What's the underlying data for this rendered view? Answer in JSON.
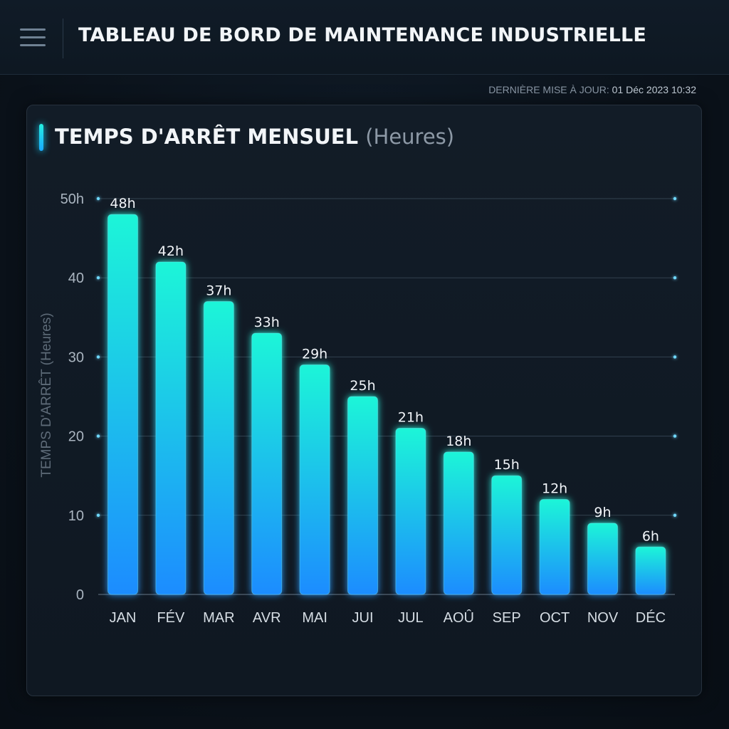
{
  "header": {
    "title": "TABLEAU DE BORD DE MAINTENANCE INDUSTRIELLE",
    "last_update_label": "DERNIÈRE MISE À JOUR:",
    "last_update_value": "01 Déc 2023 10:32"
  },
  "panel": {
    "title": "TEMPS D'ARRÊT MENSUEL",
    "title_unit": "(Heures)"
  },
  "icons": {
    "menu": "hamburger-menu-icon"
  },
  "colors": {
    "bar_top": "#1ff5d8",
    "bar_bottom": "#1a8cff",
    "accent": "#19d6ff",
    "grid": "#33424f"
  },
  "chart_data": {
    "type": "bar",
    "categories": [
      "JAN",
      "FÉV",
      "MAR",
      "AVR",
      "MAI",
      "JUI",
      "JUL",
      "AOÛ",
      "SEP",
      "OCT",
      "NOV",
      "DÉC"
    ],
    "values": [
      48,
      42,
      37,
      33,
      29,
      25,
      21,
      18,
      15,
      12,
      9,
      6
    ],
    "data_labels": [
      "48h",
      "42h",
      "37h",
      "33h",
      "29h",
      "25h",
      "21h",
      "18h",
      "15h",
      "12h",
      "9h",
      "6h"
    ],
    "ylabel": "TEMPS D'ARRÊT (Heures)",
    "ylim": [
      0,
      50
    ],
    "yticks": [
      0,
      10,
      20,
      30,
      40,
      50
    ],
    "ytick_labels": [
      "0",
      "10",
      "20",
      "30",
      "40",
      "50h"
    ],
    "grid": true
  }
}
